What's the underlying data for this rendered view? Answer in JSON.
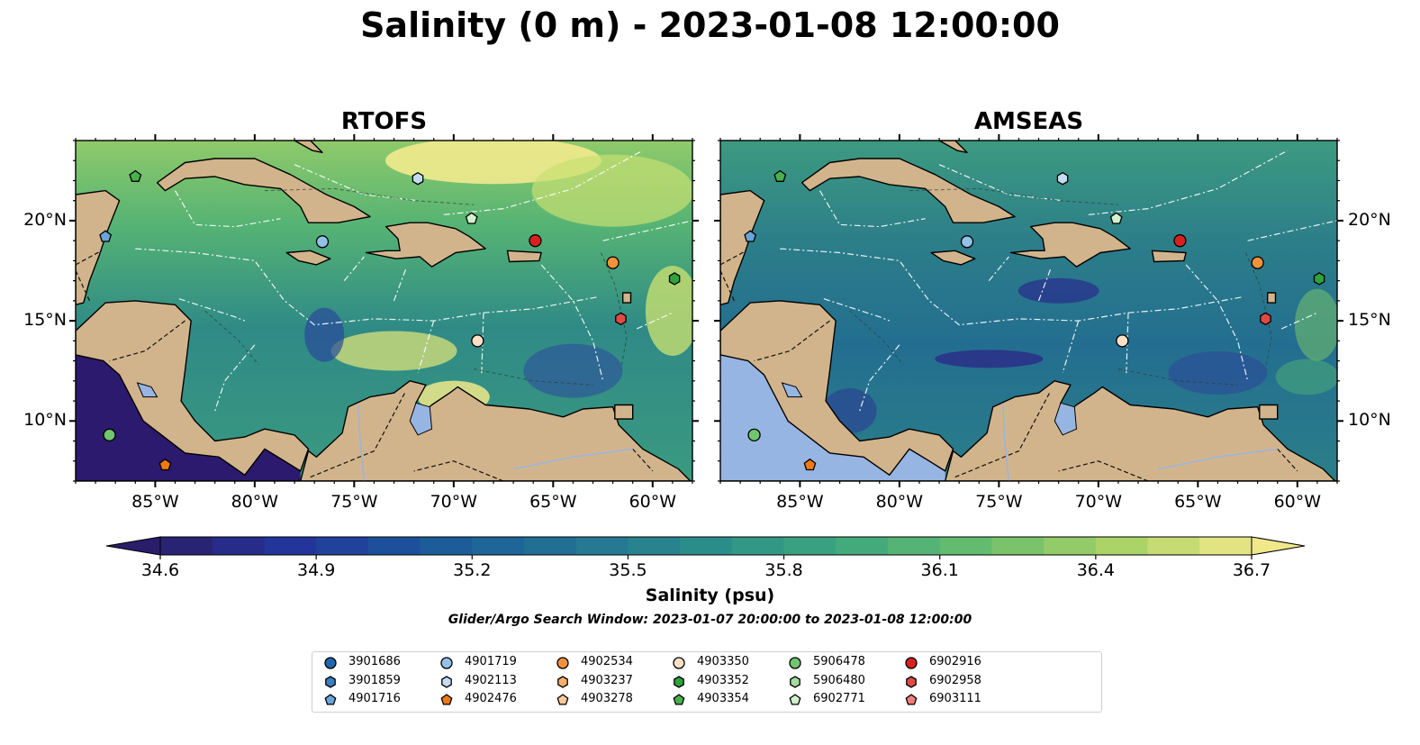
{
  "figure": {
    "title": "Salinity (0 m) - 2023-01-08 12:00:00",
    "colorbar_label": "Salinity (psu)",
    "search_window": "Glider/Argo Search Window: 2023-01-07 20:00:00 to 2023-01-08 12:00:00"
  },
  "map_extent": {
    "lon_min": -89,
    "lon_max": -58,
    "lat_min": 7,
    "lat_max": 24
  },
  "colors": {
    "land": "#d2b48c",
    "pacific_rtofs": "#2b1a6e",
    "pacific_amseas": "#97b5e2",
    "sea_base": "#2f8585",
    "coast": "#000000"
  },
  "panels": [
    {
      "title": "RTOFS",
      "model": "rtofs"
    },
    {
      "title": "AMSEAS",
      "model": "amseas"
    }
  ],
  "axes": {
    "lon_ticks": [
      -85,
      -80,
      -75,
      -70,
      -65,
      -60
    ],
    "lon_labels": [
      "85°W",
      "80°W",
      "75°W",
      "70°W",
      "65°W",
      "60°W"
    ],
    "lat_ticks": [
      10,
      15,
      20
    ],
    "lat_labels": [
      "10°N",
      "15°N",
      "20°N"
    ]
  },
  "colorbar": {
    "min": 34.6,
    "max": 36.7,
    "step": 0.1,
    "ticks": [
      34.6,
      34.9,
      35.2,
      35.5,
      35.8,
      36.1,
      36.4,
      36.7
    ],
    "tick_labels": [
      "34.6",
      "34.9",
      "35.2",
      "35.5",
      "35.8",
      "36.1",
      "36.4",
      "36.7"
    ],
    "colormap": [
      "#2a1e6b",
      "#23369c",
      "#1a5a9a",
      "#237394",
      "#2b8d8a",
      "#3fa77d",
      "#67bd6d",
      "#a9d266",
      "#f0e88a"
    ],
    "extend": "both"
  },
  "floats": [
    {
      "id": "3901686",
      "marker": "circle",
      "color": "#1f66b0",
      "lon": null,
      "lat": null
    },
    {
      "id": "3901859",
      "marker": "hexagon",
      "color": "#3a7fc0",
      "lon": null,
      "lat": null
    },
    {
      "id": "4901716",
      "marker": "pentagon",
      "color": "#6aa4d8",
      "lon": -87.5,
      "lat": 19.2
    },
    {
      "id": "4901719",
      "marker": "circle",
      "color": "#93c1e8",
      "lon": -76.6,
      "lat": 18.95
    },
    {
      "id": "4902113",
      "marker": "hexagon",
      "color": "#c4dcf3",
      "lon": -71.8,
      "lat": 22.1
    },
    {
      "id": "4902476",
      "marker": "pentagon",
      "color": "#ef7a12",
      "lon": -84.5,
      "lat": 7.8
    },
    {
      "id": "4902534",
      "marker": "circle",
      "color": "#f2913c",
      "lon": -62.0,
      "lat": 17.9
    },
    {
      "id": "4903237",
      "marker": "hexagon",
      "color": "#f8b06a",
      "lon": null,
      "lat": null
    },
    {
      "id": "4903278",
      "marker": "pentagon",
      "color": "#fbc99a",
      "lon": null,
      "lat": null
    },
    {
      "id": "4903350",
      "marker": "circle",
      "color": "#fde0c6",
      "lon": -68.8,
      "lat": 14.0
    },
    {
      "id": "4903352",
      "marker": "hexagon",
      "color": "#2fa33a",
      "lon": -58.9,
      "lat": 17.1
    },
    {
      "id": "4903354",
      "marker": "pentagon",
      "color": "#49b04d",
      "lon": -86.0,
      "lat": 22.2
    },
    {
      "id": "5906478",
      "marker": "circle",
      "color": "#72c56f",
      "lon": -87.3,
      "lat": 9.3
    },
    {
      "id": "5906480",
      "marker": "hexagon",
      "color": "#a3dd9c",
      "lon": null,
      "lat": null
    },
    {
      "id": "6902771",
      "marker": "pentagon",
      "color": "#d3f0cc",
      "lon": -69.1,
      "lat": 20.1
    },
    {
      "id": "6902916",
      "marker": "circle",
      "color": "#d9201f",
      "lon": -65.9,
      "lat": 19.0
    },
    {
      "id": "6902958",
      "marker": "hexagon",
      "color": "#e04a45",
      "lon": -61.6,
      "lat": 15.1
    },
    {
      "id": "6903111",
      "marker": "pentagon",
      "color": "#f07d7a",
      "lon": null,
      "lat": null
    }
  ]
}
